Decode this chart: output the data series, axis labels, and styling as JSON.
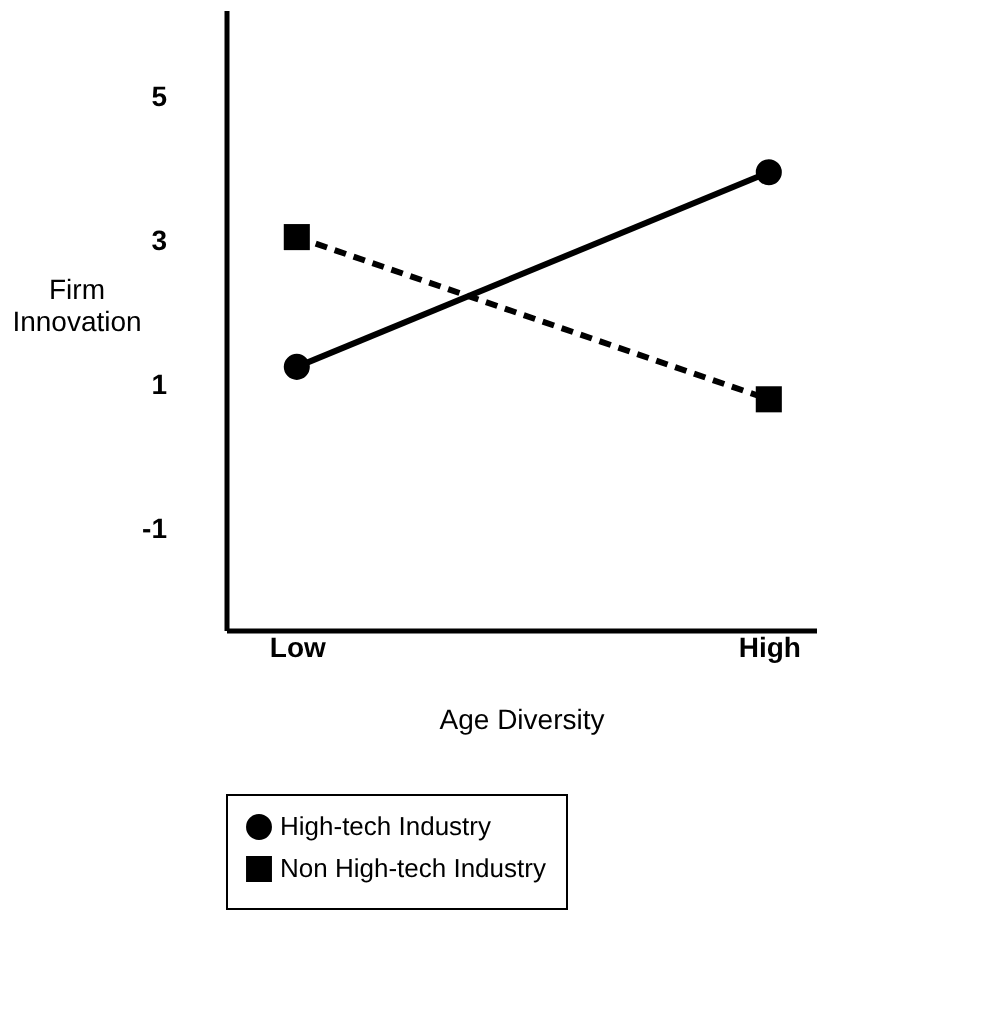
{
  "chart_data": {
    "type": "line",
    "xlabel": "Age Diversity",
    "ylabel": "Firm Innovation",
    "categories": [
      "Low",
      "High"
    ],
    "series": [
      {
        "name": "High-tech Industry",
        "color": "#000000",
        "values": [
          1.25,
          3.95
        ],
        "marker": "circle",
        "line_style": "solid"
      },
      {
        "name": "Non High-tech Industry",
        "color": "#000000",
        "values": [
          3.05,
          0.8
        ],
        "marker": "square",
        "line_style": "dashed"
      }
    ],
    "ylim": [
      -2.4,
      6.2
    ],
    "yticks": [
      5,
      3,
      1,
      -1
    ],
    "grid": false,
    "legend": "bottom"
  }
}
